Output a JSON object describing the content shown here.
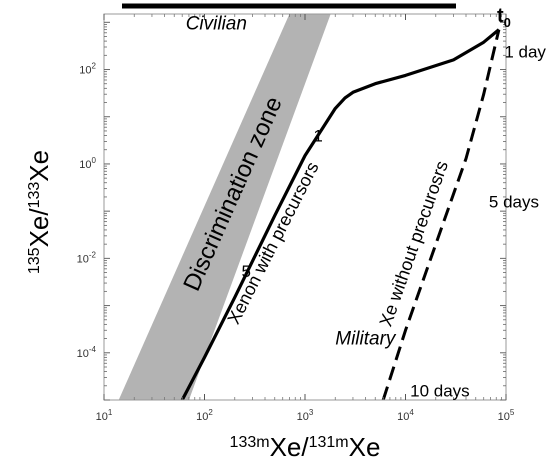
{
  "chart_data": {
    "type": "line",
    "title": "",
    "xscale": "log",
    "yscale": "log",
    "xlim": [
      10,
      100000
    ],
    "ylim": [
      1e-05,
      1500
    ],
    "grid": false,
    "xticks": [
      10,
      100,
      1000,
      10000,
      100000
    ],
    "yticks": [
      0.0001,
      0.01,
      1,
      100
    ],
    "xtick_labels": [
      {
        "base": "10",
        "exp": "1"
      },
      {
        "base": "10",
        "exp": "2"
      },
      {
        "base": "10",
        "exp": "3"
      },
      {
        "base": "10",
        "exp": "4"
      },
      {
        "base": "10",
        "exp": "5"
      }
    ],
    "ytick_labels": [
      {
        "base": "10",
        "exp": "-4"
      },
      {
        "base": "10",
        "exp": "-2"
      },
      {
        "base": "10",
        "exp": "0"
      },
      {
        "base": "10",
        "exp": "2"
      }
    ],
    "xlabel": {
      "sup1": "133m",
      "base1": "Xe/",
      "sup2": "131m",
      "base2": "Xe"
    },
    "ylabel": {
      "sup1": "135",
      "base1": "Xe/",
      "sup2": "133",
      "base2": "Xe"
    },
    "series": [
      {
        "name": "Xenon with precursors",
        "style": "solid",
        "x": [
          60,
          100,
          200,
          500,
          1000,
          2000,
          2500,
          3000,
          5000,
          10000,
          30000,
          60000,
          85000
        ],
        "y": [
          1e-05,
          8e-05,
          0.0015,
          0.08,
          1.5,
          15,
          25,
          33,
          50,
          75,
          160,
          380,
          700
        ]
      },
      {
        "name": "Xe without precurosrs",
        "style": "dashed",
        "x": [
          6000,
          10000,
          20000,
          40000,
          60000,
          85000
        ],
        "y": [
          1e-05,
          0.0003,
          0.02,
          1.3,
          30,
          700
        ]
      }
    ],
    "discrimination_zone": {
      "label": "Discrimination zone",
      "color": "#b3b3b3",
      "left_edge": [
        {
          "x": 14,
          "y": 1e-05
        },
        {
          "x": 700,
          "y": 1500
        }
      ],
      "right_edge": [
        {
          "x": 70,
          "y": 1e-05
        },
        {
          "x": 1800,
          "y": 1500
        }
      ]
    },
    "point_labels": [
      {
        "text": "1",
        "x": 1350,
        "y": 3
      },
      {
        "text": "5",
        "x": 260,
        "y": 0.004
      }
    ],
    "annotations": [
      {
        "text": "1 day",
        "x": 155000,
        "y": 180,
        "color": "#000000"
      },
      {
        "text": "5 days",
        "x": 120000,
        "y": 0.12,
        "color": "#000000"
      },
      {
        "text": "10 days",
        "x": 22000,
        "y": 1.2e-05,
        "color": "#000000"
      },
      {
        "text": "Civilian",
        "x": 65,
        "y": 700,
        "color": "#1a1aaa",
        "italic": true
      },
      {
        "text": "Military",
        "x": 2000,
        "y": 0.00015,
        "color": "#c00000",
        "italic": true
      }
    ],
    "t0_label": {
      "base": "t",
      "sub": "0"
    }
  }
}
